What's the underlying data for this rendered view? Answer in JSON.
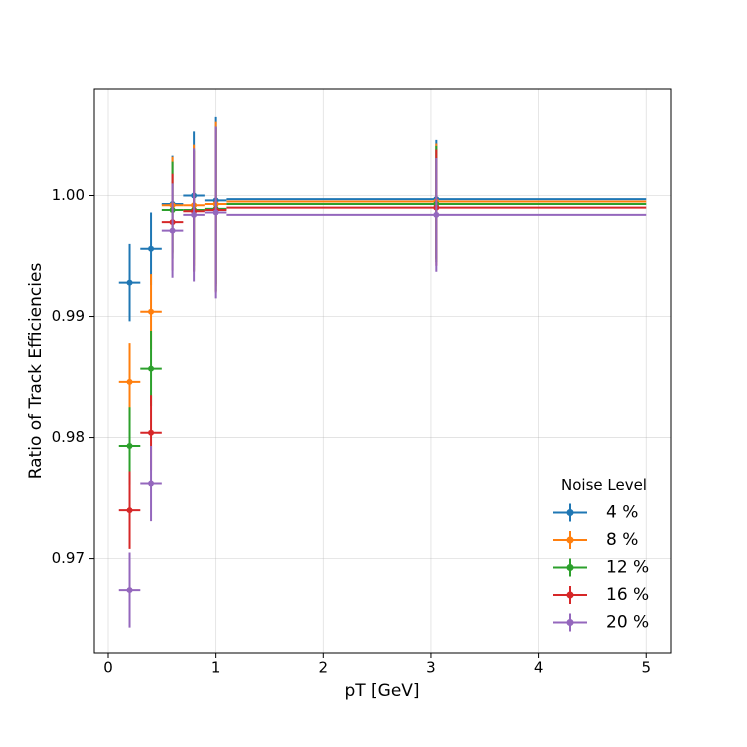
{
  "chart_data": {
    "type": "errorbar",
    "xlabel": "pT [GeV]",
    "ylabel": "Ratio of Track Efficiencies",
    "x": [
      0.2,
      0.4,
      0.6,
      0.8,
      1.0,
      3.05
    ],
    "xerr": [
      0.1,
      0.1,
      0.1,
      0.1,
      0.1,
      1.95
    ],
    "series": [
      {
        "name": "4 %",
        "color": "#1f77b4",
        "values": [
          0.9928,
          0.9956,
          0.9993,
          1.0,
          0.9996,
          0.9997
        ],
        "errors": [
          0.0032,
          0.003,
          0.004,
          0.0053,
          0.0069,
          0.0049
        ]
      },
      {
        "name": "8 %",
        "color": "#ff7f0e",
        "values": [
          0.9846,
          0.9904,
          0.9992,
          0.9992,
          0.9993,
          0.9995
        ],
        "errors": [
          0.0032,
          0.0031,
          0.004,
          0.005,
          0.0068,
          0.0048
        ]
      },
      {
        "name": "12 %",
        "color": "#2ca02c",
        "values": [
          0.9793,
          0.9857,
          0.9988,
          0.9988,
          0.9989,
          0.9993
        ],
        "errors": [
          0.0032,
          0.0031,
          0.004,
          0.005,
          0.0068,
          0.0048
        ]
      },
      {
        "name": "16 %",
        "color": "#d62728",
        "values": [
          0.974,
          0.9804,
          0.9978,
          0.9987,
          0.9988,
          0.999
        ],
        "errors": [
          0.0032,
          0.0031,
          0.004,
          0.005,
          0.0068,
          0.0048
        ]
      },
      {
        "name": "20 %",
        "color": "#9467bd",
        "values": [
          0.9674,
          0.9762,
          0.9971,
          0.9984,
          0.9986,
          0.9984
        ],
        "errors": [
          0.0031,
          0.0031,
          0.0039,
          0.0055,
          0.0071,
          0.0047
        ]
      }
    ],
    "xlim": [
      -0.13,
      5.23
    ],
    "ylim": [
      0.9622,
      1.0088
    ],
    "xticks": [
      0,
      1,
      2,
      3,
      4,
      5
    ],
    "yticks": [
      0.97,
      0.98,
      0.99,
      {
        "value": 1,
        "label": "1.00"
      }
    ],
    "grid": true,
    "legend_title": "Noise Level",
    "legend_loc": "lower right"
  }
}
